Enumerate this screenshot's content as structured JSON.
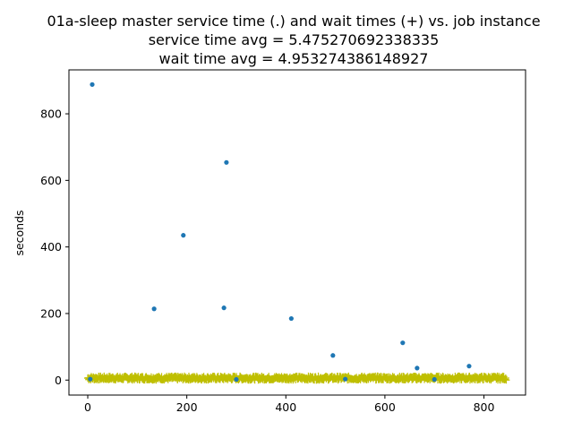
{
  "chart_data": {
    "type": "scatter",
    "title": "01a-sleep master service time (.) and wait times (+) vs. job instance",
    "subtitle_1": "service time avg = 5.475270692338335",
    "subtitle_2": "wait time avg = 4.953274386148927",
    "xlabel": "",
    "ylabel": "seconds",
    "xlim": [
      -38,
      884
    ],
    "ylim": [
      -45,
      932
    ],
    "x_ticks": [
      0,
      200,
      400,
      600,
      800
    ],
    "x_tick_labels": [
      "0",
      "200",
      "400",
      "600",
      "800"
    ],
    "y_ticks": [
      0,
      200,
      400,
      600,
      800
    ],
    "y_tick_labels": [
      "0",
      "200",
      "400",
      "600",
      "800"
    ],
    "grid": false,
    "legend": "none",
    "series": [
      {
        "marker": "dot",
        "color": "#1f77b4",
        "points": [
          [
            9,
            888
          ],
          [
            280,
            654
          ],
          [
            193,
            435
          ],
          [
            134,
            214
          ],
          [
            275,
            217
          ],
          [
            411,
            185
          ],
          [
            495,
            74
          ],
          [
            636,
            112
          ],
          [
            665,
            36
          ],
          [
            770,
            42
          ],
          [
            5,
            3
          ],
          [
            300,
            2
          ],
          [
            520,
            3
          ],
          [
            700,
            2
          ]
        ]
      },
      {
        "marker": "plus",
        "color": "#bfbf00",
        "x_start": 0,
        "x_end": 845,
        "count": 845,
        "y_range": [
          0,
          12
        ]
      }
    ]
  }
}
